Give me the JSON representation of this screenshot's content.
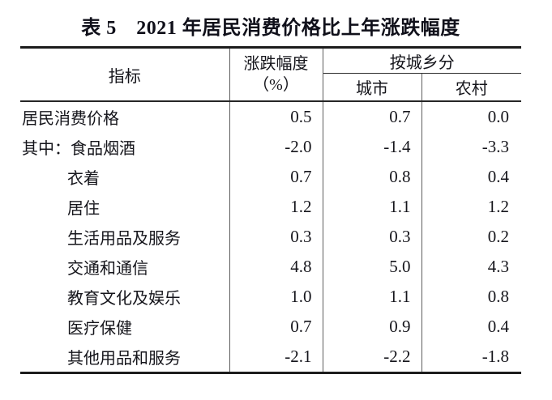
{
  "title": "表 5　2021 年居民消费价格比上年涨跌幅度",
  "colors": {
    "ink": "#15151b",
    "rule_dark": "#1c1c1c",
    "rule_gray": "#5e5e5e",
    "background": "#ffffff"
  },
  "table": {
    "header": {
      "indicator": "指标",
      "change_line1": "涨跌幅度",
      "change_line2": "（%）",
      "by_urban_rural": "按城乡分",
      "urban": "城市",
      "rural": "农村"
    },
    "rows": [
      {
        "label": "居民消费价格",
        "indent": false,
        "change": "0.5",
        "urban": "0.7",
        "rural": "0.0"
      },
      {
        "label": "其中：食品烟酒",
        "indent": false,
        "change": "-2.0",
        "urban": "-1.4",
        "rural": "-3.3"
      },
      {
        "label": "衣着",
        "indent": true,
        "change": "0.7",
        "urban": "0.8",
        "rural": "0.4"
      },
      {
        "label": "居住",
        "indent": true,
        "change": "1.2",
        "urban": "1.1",
        "rural": "1.2"
      },
      {
        "label": "生活用品及服务",
        "indent": true,
        "change": "0.3",
        "urban": "0.3",
        "rural": "0.2"
      },
      {
        "label": "交通和通信",
        "indent": true,
        "change": "4.8",
        "urban": "5.0",
        "rural": "4.3"
      },
      {
        "label": "教育文化及娱乐",
        "indent": true,
        "change": "1.0",
        "urban": "1.1",
        "rural": "0.8"
      },
      {
        "label": "医疗保健",
        "indent": true,
        "change": "0.7",
        "urban": "0.9",
        "rural": "0.4"
      },
      {
        "label": "其他用品和服务",
        "indent": true,
        "change": "-2.1",
        "urban": "-2.2",
        "rural": "-1.8"
      }
    ]
  }
}
